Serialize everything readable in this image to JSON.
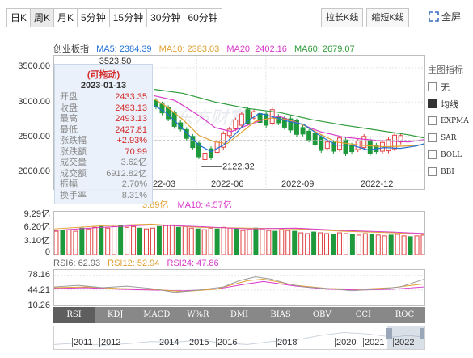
{
  "toolbar": {
    "periods": [
      "日K",
      "周K",
      "月K",
      "5分钟",
      "15分钟",
      "30分钟",
      "60分钟"
    ],
    "active_period": "周K",
    "stretch_label": "拉长K线",
    "shrink_label": "缩短K线",
    "fullscreen_label": "全屏"
  },
  "ma_legend": {
    "name": "创业板指",
    "ma5": "MA5: 2384.39",
    "ma10": "MA10: 2383.03",
    "ma20": "MA20: 2402.16",
    "ma60": "MA60: 2679.07",
    "colors": {
      "ma5": "#1f6fd6",
      "ma10": "#e0a030",
      "ma20": "#d838c8",
      "ma60": "#2e9c3a"
    }
  },
  "price_axis": [
    "3500.00",
    "3000.00",
    "2500.00",
    "2000.00"
  ],
  "x_axis": [
    "22-03",
    "2022-06",
    "2022-09",
    "2022-12"
  ],
  "price_annotations": {
    "high_partial": "3523.50",
    "low": "2122.32"
  },
  "tooltip": {
    "title": "(可拖动)",
    "date": "2023-01-13",
    "rows": [
      {
        "k": "开盘",
        "v": "2433.35",
        "red": true
      },
      {
        "k": "收盘",
        "v": "2493.13",
        "red": true
      },
      {
        "k": "最高",
        "v": "2493.13",
        "red": true
      },
      {
        "k": "最低",
        "v": "2427.81",
        "red": true
      },
      {
        "k": "涨跌幅",
        "v": "+2.93%",
        "red": true
      },
      {
        "k": "涨跌额",
        "v": "70.99",
        "red": true
      },
      {
        "k": "成交量",
        "v": "3.62亿",
        "red": false
      },
      {
        "k": "成交额",
        "v": "6912.82亿",
        "red": false
      },
      {
        "k": "振幅",
        "v": "2.70%",
        "red": false
      },
      {
        "k": "换手率",
        "v": "8.31%",
        "red": false
      }
    ]
  },
  "volume": {
    "legend_partial": "3.89亿",
    "ma10": "MA10: 4.57亿",
    "axis": [
      "9.29亿",
      "6.20亿",
      "3.10亿",
      "0"
    ]
  },
  "rsi": {
    "rsi6": "RSI6: 62.93",
    "rsi12": "RSI12: 52.94",
    "rsi24": "RSI24: 47.86",
    "axis": [
      "78.16",
      "44.21",
      "10.26"
    ]
  },
  "indicator_panel": {
    "title": "主图指标",
    "items": [
      {
        "label": "无",
        "checked": false
      },
      {
        "label": "均线",
        "checked": true
      },
      {
        "label": "EXPMA",
        "checked": false
      },
      {
        "label": "SAR",
        "checked": false
      },
      {
        "label": "BOLL",
        "checked": false
      },
      {
        "label": "BBI",
        "checked": false
      }
    ]
  },
  "indicator_tabs": [
    "RSI",
    "KDJ",
    "MACD",
    "W%R",
    "DMI",
    "BIAS",
    "OBV",
    "CCI",
    "ROC"
  ],
  "active_indicator": "RSI",
  "timeline": [
    "2011",
    "2012",
    "2014",
    "2015",
    "2016",
    "2018",
    "2020",
    "2021",
    "2022"
  ],
  "watermark": "东方财富"
}
